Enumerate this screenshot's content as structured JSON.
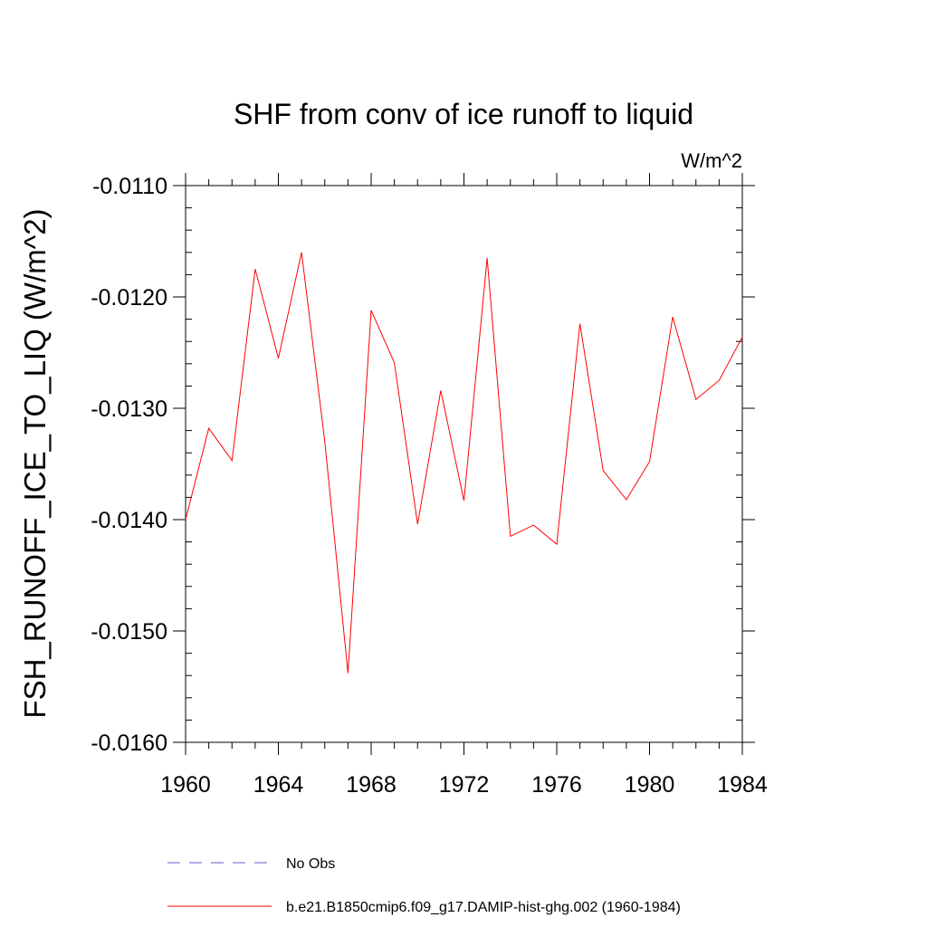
{
  "chart_data": {
    "type": "line",
    "title": "SHF from conv of ice runoff to liquid",
    "units": "W/m^2",
    "xlabel": "",
    "ylabel": "FSH_RUNOFF_ICE_TO_LIQ  (W/m^2)",
    "xlim": [
      1960,
      1984
    ],
    "ylim": [
      -0.016,
      -0.011
    ],
    "x_ticks": [
      1960,
      1964,
      1968,
      1972,
      1976,
      1980,
      1984
    ],
    "y_ticks": [
      -0.011,
      -0.012,
      -0.013,
      -0.014,
      -0.015,
      -0.016
    ],
    "y_tick_labels": [
      "-0.0110",
      "-0.0120",
      "-0.0130",
      "-0.0140",
      "-0.0150",
      "-0.0160"
    ],
    "x": [
      1960,
      1961,
      1962,
      1963,
      1964,
      1965,
      1966,
      1967,
      1968,
      1969,
      1970,
      1971,
      1972,
      1973,
      1974,
      1975,
      1976,
      1977,
      1978,
      1979,
      1980,
      1981,
      1982,
      1983,
      1984
    ],
    "series": [
      {
        "name": "b.e21.B1850cmip6.f09_g17.DAMIP-hist-ghg.002 (1960-1984)",
        "color": "#ff0000",
        "values": [
          -0.014,
          -0.01318,
          -0.01347,
          -0.01175,
          -0.01255,
          -0.0116,
          -0.0133,
          -0.01538,
          -0.01212,
          -0.01259,
          -0.01404,
          -0.01284,
          -0.01383,
          -0.01165,
          -0.01415,
          -0.01405,
          -0.01422,
          -0.01224,
          -0.01356,
          -0.01382,
          -0.01348,
          -0.01218,
          -0.01292,
          -0.01275,
          -0.01236
        ]
      }
    ],
    "legend": [
      {
        "label": "No Obs",
        "color": "#6a5acd",
        "style": "dashed"
      },
      {
        "label": "b.e21.B1850cmip6.f09_g17.DAMIP-hist-ghg.002 (1960-1984)",
        "color": "#ff0000",
        "style": "solid"
      }
    ],
    "legend_position": "bottom",
    "grid": false
  }
}
